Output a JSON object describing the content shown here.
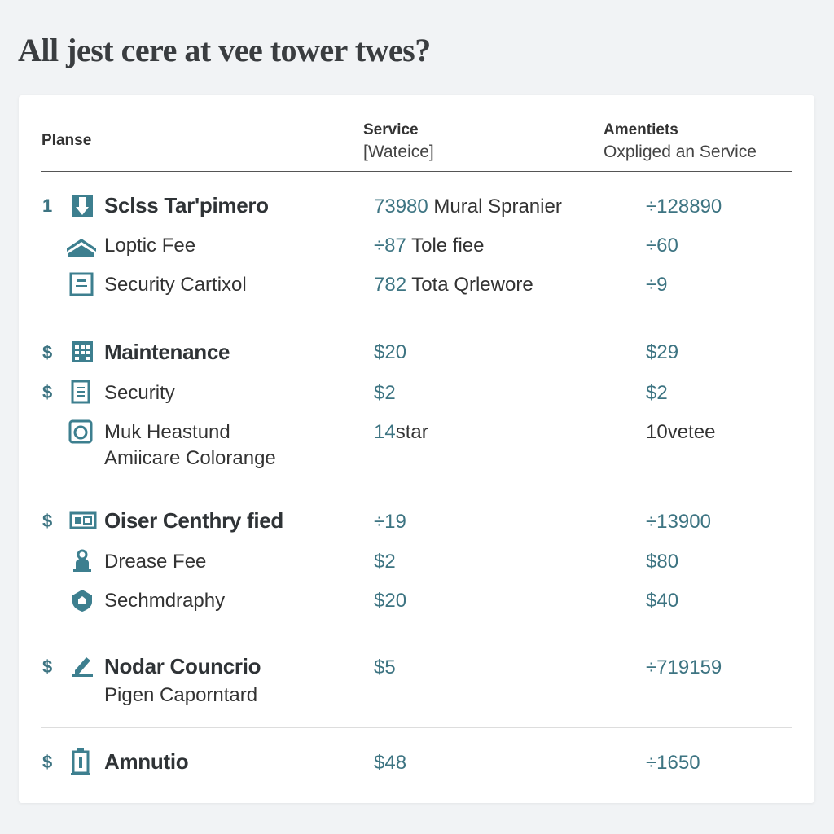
{
  "title": "All jest cere at vee tower twes?",
  "header": {
    "col1": "Planse",
    "col2": "Service",
    "col2_sub": "[Wateice]",
    "col3": "Amentiets",
    "col3_sub": "Oxpliged an Service"
  },
  "groups": [
    {
      "marker": "1",
      "rows": [
        {
          "icon": "download-box-icon",
          "name": "Sclss Tar'pimero",
          "bold": true,
          "service_num": "73980",
          "service_text": "Mural Spranier",
          "amenity": "÷128890"
        },
        {
          "icon": "roof-icon",
          "name": "Loptic Fee",
          "service_num": "÷87",
          "service_text": "Tole fiee",
          "amenity": "÷60"
        },
        {
          "icon": "panel-icon",
          "name": "Security Cartixol",
          "service_num": "782",
          "service_text": "Tota Qrlewore",
          "amenity": "÷9"
        }
      ]
    },
    {
      "marker": "$",
      "rows": [
        {
          "icon": "building-icon",
          "name": "Maintenance",
          "bold": true,
          "service_num": "$20",
          "amenity": "$29"
        },
        {
          "icon": "document-icon",
          "name": "Security",
          "marker": "$",
          "service_num": "$2",
          "amenity": "$2"
        },
        {
          "icon": "washer-icon",
          "name": "Muk Heastund",
          "name2": "Amiicare Colorange",
          "service_num": "14",
          "service_text": "star",
          "amenity": "10",
          "amenity_text": "vetee"
        }
      ]
    },
    {
      "marker": "$",
      "rows": [
        {
          "icon": "card-icon",
          "name": "Oiser Centhry fied",
          "bold": true,
          "service_num": "÷19",
          "amenity": "÷13900"
        },
        {
          "icon": "person-icon",
          "name": "Drease Fee",
          "service_num": "$2",
          "amenity": "$80"
        },
        {
          "icon": "shield-icon",
          "name": "Sechmdraphy",
          "service_num": "$20",
          "amenity": "$40"
        }
      ]
    },
    {
      "marker": "$",
      "rows": [
        {
          "icon": "pen-icon",
          "name": "Nodar Councrio",
          "bold": true,
          "name2": "Pigen Caporntard",
          "service_num": "$5",
          "amenity": "÷719159"
        }
      ]
    },
    {
      "marker": "$",
      "rows": [
        {
          "icon": "tower-icon",
          "name": "Amnutio",
          "bold": true,
          "service_num": "$48",
          "amenity": "÷1650"
        }
      ]
    }
  ]
}
